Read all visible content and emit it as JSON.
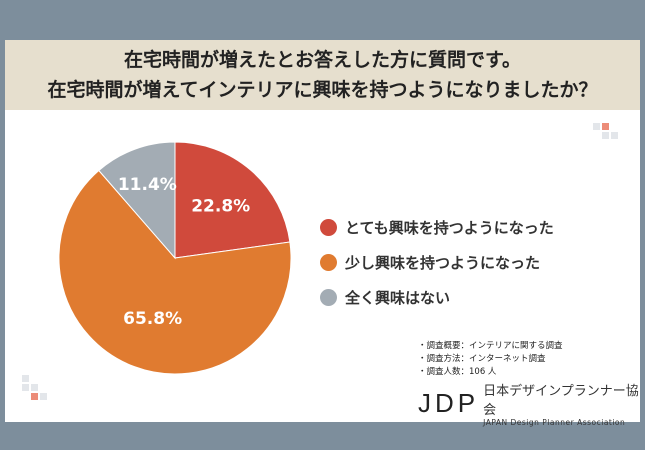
{
  "header": {
    "line1": "在宅時間が増えたとお答えした方に質問です。",
    "line2": "在宅時間が増えてインテリアに興味を持つようになりましたか？"
  },
  "chart_data": {
    "type": "pie",
    "title": "在宅時間が増えてインテリアに興味を持つようになりましたか？",
    "categories": [
      "とても興味を持つようになった",
      "少し興味を持つようになった",
      "全く興味はない"
    ],
    "values": [
      22.8,
      65.8,
      11.4
    ],
    "labels": [
      "22.8%",
      "65.8%",
      "11.4%"
    ],
    "colors": [
      "#d04a3c",
      "#e07b30",
      "#a3acb4"
    ],
    "legend_position": "right"
  },
  "notes": [
    "・調査概要：インテリアに関する調査",
    "・調査方法：インターネット調査",
    "・調査人数：106 人"
  ],
  "logo": {
    "mark": "JDP",
    "name_jp": "日本デザインプランナー協会",
    "name_en": "JAPAN Design Planner Association"
  }
}
